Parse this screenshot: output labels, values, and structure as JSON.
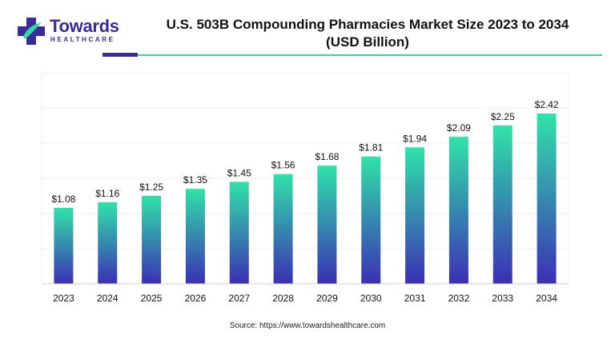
{
  "brand": {
    "name": "Towards",
    "sub": "HEALTHCARE"
  },
  "header": {
    "title_line1": "U.S. 503B Compounding Pharmacies Market Size 2023 to 2034",
    "title_line2": "(USD Billion)"
  },
  "colors": {
    "bar_top": "#2fe3a8",
    "bar_bottom": "#3b2fb5",
    "grid": "#ececec",
    "accent": "#3b2a9a"
  },
  "chart_data": {
    "type": "bar",
    "title": "U.S. 503B Compounding Pharmacies Market Size 2023 to 2034 (USD Billion)",
    "xlabel": "",
    "ylabel": "",
    "categories": [
      "2023",
      "2024",
      "2025",
      "2026",
      "2027",
      "2028",
      "2029",
      "2030",
      "2031",
      "2032",
      "2033",
      "2034"
    ],
    "values": [
      1.08,
      1.16,
      1.25,
      1.35,
      1.45,
      1.56,
      1.68,
      1.81,
      1.94,
      2.09,
      2.25,
      2.42
    ],
    "labels": [
      "$1.08",
      "$1.16",
      "$1.25",
      "$1.35",
      "$1.45",
      "$1.56",
      "$1.68",
      "$1.81",
      "$1.94",
      "$2.09",
      "$2.25",
      "$2.42"
    ],
    "ylim": [
      0,
      3
    ],
    "grid": true
  },
  "footer": {
    "source": "Source: https://www.towardshealthcare.com"
  }
}
